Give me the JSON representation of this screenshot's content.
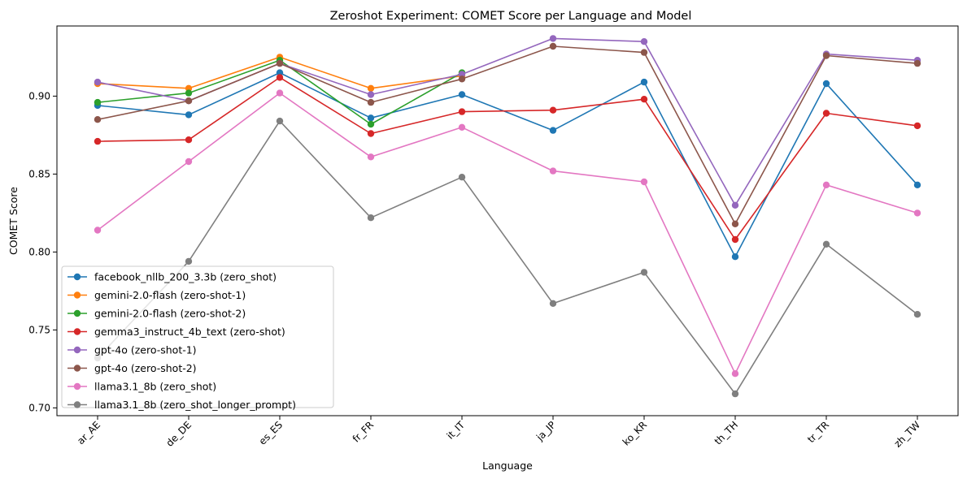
{
  "chart_data": {
    "type": "line",
    "title": "Zeroshot Experiment: COMET Score per Language and Model",
    "xlabel": "Language",
    "ylabel": "COMET Score",
    "categories": [
      "ar_AE",
      "de_DE",
      "es_ES",
      "fr_FR",
      "it_IT",
      "ja_JP",
      "ko_KR",
      "th_TH",
      "tr_TR",
      "zh_TW"
    ],
    "ylim": [
      0.695,
      0.945
    ],
    "yticks": [
      0.7,
      0.75,
      0.8,
      0.85,
      0.9
    ],
    "ytick_labels": [
      "0.70",
      "0.75",
      "0.80",
      "0.85",
      "0.90"
    ],
    "grid": false,
    "legend_position": "lower-left",
    "series": [
      {
        "name": "facebook_nllb_200_3.3b (zero_shot)",
        "color": "#1f77b4",
        "values": [
          0.894,
          0.888,
          0.915,
          0.886,
          0.901,
          0.878,
          0.909,
          0.797,
          0.908,
          0.843
        ]
      },
      {
        "name": "gemini-2.0-flash (zero-shot-1)",
        "color": "#ff7f0e",
        "values": [
          0.908,
          0.905,
          0.925,
          0.905,
          0.913,
          null,
          null,
          null,
          null,
          null
        ]
      },
      {
        "name": "gemini-2.0-flash (zero-shot-2)",
        "color": "#2ca02c",
        "values": [
          0.896,
          0.902,
          0.923,
          0.882,
          0.915,
          null,
          null,
          null,
          null,
          null
        ]
      },
      {
        "name": "gemma3_instruct_4b_text (zero-shot)",
        "color": "#d62728",
        "values": [
          0.871,
          0.872,
          0.912,
          0.876,
          0.89,
          0.891,
          0.898,
          0.808,
          0.889,
          0.881
        ]
      },
      {
        "name": "gpt-4o (zero-shot-1)",
        "color": "#9467bd",
        "values": [
          0.909,
          0.897,
          0.921,
          0.901,
          0.914,
          0.937,
          0.935,
          0.83,
          0.927,
          0.923
        ]
      },
      {
        "name": "gpt-4o (zero-shot-2)",
        "color": "#8c564b",
        "values": [
          0.885,
          0.897,
          0.921,
          0.896,
          0.911,
          0.932,
          0.928,
          0.818,
          0.926,
          0.921
        ]
      },
      {
        "name": "llama3.1_8b (zero_shot)",
        "color": "#e377c2",
        "values": [
          0.814,
          0.858,
          0.902,
          0.861,
          0.88,
          0.852,
          0.845,
          0.722,
          0.843,
          0.825
        ]
      },
      {
        "name": "llama3.1_8b (zero_shot_longer_prompt)",
        "color": "#7f7f7f",
        "values": [
          0.732,
          0.794,
          0.884,
          0.822,
          0.848,
          0.767,
          0.787,
          0.709,
          0.805,
          0.76
        ]
      }
    ]
  }
}
